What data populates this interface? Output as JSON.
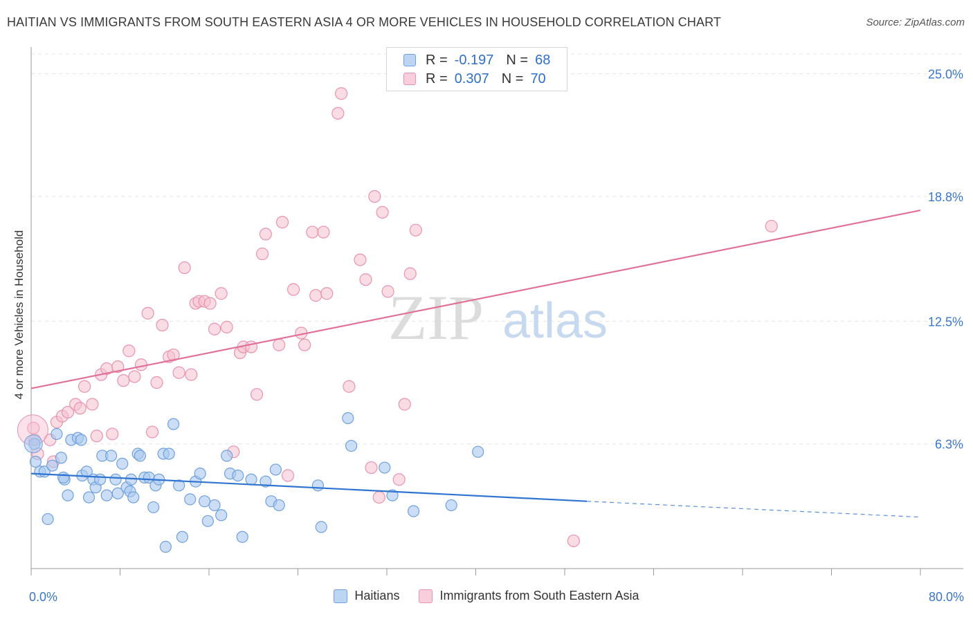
{
  "title": "HAITIAN VS IMMIGRANTS FROM SOUTH EASTERN ASIA 4 OR MORE VEHICLES IN HOUSEHOLD CORRELATION CHART",
  "source": "Source: ZipAtlas.com",
  "watermark": {
    "zip": "ZIP",
    "atlas": "atlas"
  },
  "legend": {
    "rows": [
      {
        "r_label": "R =",
        "r_value": "-0.197",
        "n_label": "N =",
        "n_value": "68"
      },
      {
        "r_label": "R =",
        "r_value": "0.307",
        "n_label": "N =",
        "n_value": "70"
      }
    ]
  },
  "bottom_legend": [
    "Haitians",
    "Immigrants from South Eastern Asia"
  ],
  "colors": {
    "haitians_fill": "#a9c8ef",
    "haitians_stroke": "#6fa0dc",
    "haitians_line": "#2f74d0",
    "sea_fill": "#f6bfd0",
    "sea_stroke": "#e893ae",
    "sea_line": "#e0729a",
    "axis_label": "#3b76c9",
    "grid": "#e3e3e3"
  },
  "chart_data": {
    "type": "scatter",
    "title": "HAITIAN VS IMMIGRANTS FROM SOUTH EASTERN ASIA 4 OR MORE VEHICLES IN HOUSEHOLD CORRELATION CHART",
    "xlabel": "",
    "ylabel": "4 or more Vehicles in Household",
    "xlim": [
      0,
      80
    ],
    "ylim": [
      0,
      26
    ],
    "x_tick_labels": [
      "0.0%",
      "80.0%"
    ],
    "y_ticks": [
      6.3,
      12.5,
      18.8,
      25.0
    ],
    "y_tick_labels": [
      "6.3%",
      "12.5%",
      "18.8%",
      "25.0%"
    ],
    "grid": true,
    "legend_position": "top-center",
    "series": [
      {
        "name": "Haitians",
        "trend": {
          "x": [
            0,
            50
          ],
          "y": [
            4.8,
            3.4
          ],
          "dashed_to": [
            80,
            2.6
          ]
        },
        "points": [
          [
            0.3,
            6.3
          ],
          [
            0.4,
            5.4
          ],
          [
            0.8,
            4.9
          ],
          [
            1.2,
            4.9
          ],
          [
            1.5,
            2.5
          ],
          [
            1.9,
            5.2
          ],
          [
            2.3,
            6.8
          ],
          [
            2.7,
            5.6
          ],
          [
            3.0,
            4.5
          ],
          [
            3.3,
            3.7
          ],
          [
            3.6,
            6.5
          ],
          [
            4.2,
            6.6
          ],
          [
            4.5,
            6.5
          ],
          [
            4.6,
            4.7
          ],
          [
            5.0,
            4.9
          ],
          [
            5.2,
            3.6
          ],
          [
            5.6,
            4.5
          ],
          [
            5.8,
            4.1
          ],
          [
            6.2,
            4.5
          ],
          [
            6.4,
            5.7
          ],
          [
            6.8,
            3.7
          ],
          [
            7.2,
            5.7
          ],
          [
            7.6,
            4.5
          ],
          [
            7.8,
            3.8
          ],
          [
            8.2,
            5.3
          ],
          [
            8.6,
            4.1
          ],
          [
            8.9,
            3.9
          ],
          [
            9.2,
            3.6
          ],
          [
            9.6,
            5.8
          ],
          [
            9.8,
            5.7
          ],
          [
            10.2,
            4.6
          ],
          [
            10.6,
            4.6
          ],
          [
            11.0,
            3.1
          ],
          [
            11.2,
            4.2
          ],
          [
            11.5,
            4.5
          ],
          [
            11.9,
            5.8
          ],
          [
            12.4,
            5.8
          ],
          [
            12.8,
            7.3
          ],
          [
            13.3,
            4.2
          ],
          [
            13.6,
            1.6
          ],
          [
            14.3,
            3.5
          ],
          [
            14.8,
            4.4
          ],
          [
            15.2,
            4.8
          ],
          [
            15.6,
            3.4
          ],
          [
            15.9,
            2.4
          ],
          [
            16.5,
            3.2
          ],
          [
            17.1,
            2.7
          ],
          [
            17.6,
            5.7
          ],
          [
            17.9,
            4.8
          ],
          [
            18.6,
            4.7
          ],
          [
            19.0,
            1.6
          ],
          [
            19.8,
            4.5
          ],
          [
            21.1,
            4.4
          ],
          [
            21.6,
            3.4
          ],
          [
            22.0,
            5.0
          ],
          [
            22.3,
            3.2
          ],
          [
            25.8,
            4.2
          ],
          [
            26.1,
            2.1
          ],
          [
            28.5,
            7.6
          ],
          [
            28.8,
            6.2
          ],
          [
            31.8,
            5.1
          ],
          [
            32.5,
            3.7
          ],
          [
            34.4,
            2.9
          ],
          [
            37.8,
            3.2
          ],
          [
            40.2,
            5.9
          ],
          [
            12.1,
            1.1
          ],
          [
            2.9,
            4.6
          ],
          [
            9.0,
            4.5
          ]
        ]
      },
      {
        "name": "Immigrants from South Eastern Asia",
        "trend": {
          "x": [
            0,
            80
          ],
          "y": [
            9.1,
            18.1
          ]
        },
        "points": [
          [
            0.2,
            7.1
          ],
          [
            0.3,
            6.5
          ],
          [
            0.6,
            5.8
          ],
          [
            1.7,
            6.5
          ],
          [
            2.0,
            5.4
          ],
          [
            2.3,
            7.4
          ],
          [
            2.8,
            7.7
          ],
          [
            3.3,
            7.9
          ],
          [
            4.0,
            8.3
          ],
          [
            4.4,
            8.1
          ],
          [
            4.8,
            9.2
          ],
          [
            5.5,
            8.3
          ],
          [
            5.9,
            6.7
          ],
          [
            6.3,
            9.8
          ],
          [
            6.8,
            10.1
          ],
          [
            7.3,
            6.8
          ],
          [
            7.8,
            10.2
          ],
          [
            8.3,
            9.5
          ],
          [
            8.8,
            11.0
          ],
          [
            9.3,
            9.7
          ],
          [
            9.9,
            10.3
          ],
          [
            10.5,
            12.9
          ],
          [
            10.9,
            6.9
          ],
          [
            11.3,
            9.4
          ],
          [
            11.8,
            12.3
          ],
          [
            12.4,
            10.7
          ],
          [
            12.8,
            10.8
          ],
          [
            13.3,
            9.9
          ],
          [
            13.8,
            15.2
          ],
          [
            14.4,
            9.8
          ],
          [
            14.8,
            13.4
          ],
          [
            15.1,
            13.5
          ],
          [
            15.6,
            13.5
          ],
          [
            16.1,
            13.4
          ],
          [
            16.5,
            12.1
          ],
          [
            17.1,
            13.9
          ],
          [
            17.6,
            12.2
          ],
          [
            18.2,
            5.9
          ],
          [
            18.8,
            10.9
          ],
          [
            19.1,
            11.2
          ],
          [
            19.8,
            11.2
          ],
          [
            20.3,
            8.8
          ],
          [
            20.8,
            15.9
          ],
          [
            21.1,
            16.9
          ],
          [
            22.3,
            11.3
          ],
          [
            22.6,
            17.5
          ],
          [
            23.1,
            4.7
          ],
          [
            23.6,
            14.1
          ],
          [
            24.3,
            11.9
          ],
          [
            24.6,
            11.3
          ],
          [
            25.3,
            17.0
          ],
          [
            25.6,
            13.8
          ],
          [
            26.3,
            17.0
          ],
          [
            26.6,
            13.9
          ],
          [
            27.6,
            23.0
          ],
          [
            27.9,
            24.0
          ],
          [
            28.6,
            9.2
          ],
          [
            29.6,
            15.6
          ],
          [
            30.1,
            14.6
          ],
          [
            30.6,
            5.1
          ],
          [
            30.9,
            18.8
          ],
          [
            31.3,
            3.6
          ],
          [
            31.6,
            18.0
          ],
          [
            32.1,
            14.0
          ],
          [
            33.1,
            4.5
          ],
          [
            33.6,
            8.3
          ],
          [
            34.1,
            14.9
          ],
          [
            34.6,
            17.1
          ],
          [
            48.8,
            1.4
          ],
          [
            66.6,
            17.3
          ]
        ]
      }
    ]
  }
}
